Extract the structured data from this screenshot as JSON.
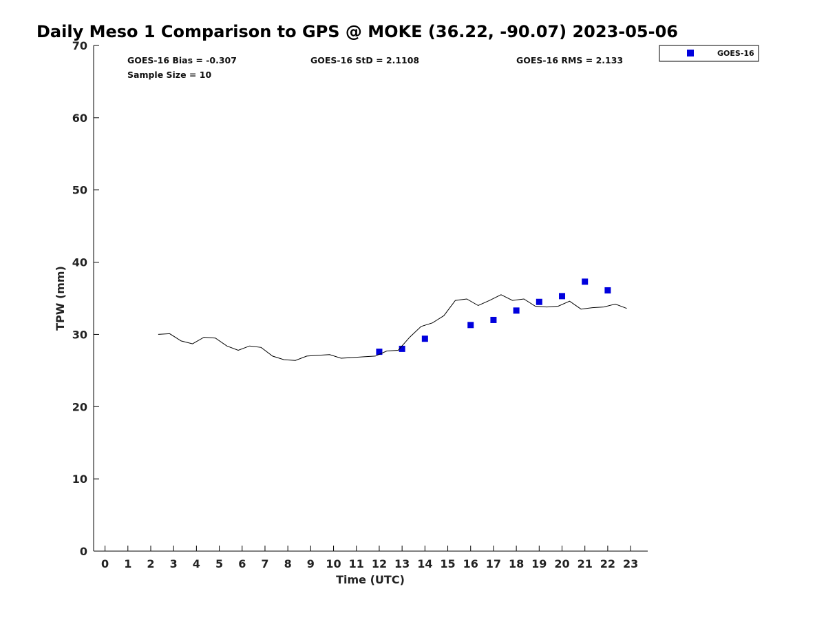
{
  "chart_data": {
    "type": "scatter",
    "title": "Daily Meso 1 Comparison to GPS @ MOKE (36.22, -90.07) 2023-05-06",
    "xlabel": "Time (UTC)",
    "ylabel": "TPW (mm)",
    "xlim": [
      -0.5,
      23.75
    ],
    "ylim": [
      0,
      70
    ],
    "x_ticks": [
      "0",
      "1",
      "2",
      "3",
      "4",
      "5",
      "6",
      "7",
      "8",
      "9",
      "10",
      "11",
      "12",
      "13",
      "14",
      "15",
      "16",
      "17",
      "18",
      "19",
      "20",
      "21",
      "22",
      "23"
    ],
    "y_ticks": [
      "0",
      "10",
      "20",
      "30",
      "40",
      "50",
      "60",
      "70"
    ],
    "grid": false,
    "legend_position": "top-right",
    "stats": {
      "bias": "GOES-16 Bias = -0.307",
      "std": "GOES-16 StD = 2.1108",
      "rms": "GOES-16 RMS = 2.133",
      "sample_size": "Sample Size = 10"
    },
    "series": [
      {
        "name": "GOES-16",
        "kind": "scatter",
        "color": "#0000dd",
        "x": [
          12,
          13,
          14,
          16,
          17,
          18,
          19,
          20,
          21,
          22
        ],
        "y": [
          27.6,
          28.0,
          29.4,
          31.3,
          32.0,
          33.3,
          34.5,
          35.3,
          37.3,
          36.1
        ]
      },
      {
        "kind": "line",
        "color": "#000000",
        "x": [
          2.33,
          2.83,
          3.33,
          3.83,
          4.33,
          4.83,
          5.33,
          5.83,
          6.33,
          6.83,
          7.33,
          7.83,
          8.33,
          8.83,
          9.33,
          9.83,
          10.33,
          10.83,
          11.33,
          11.83,
          12.33,
          12.83,
          13.33,
          13.83,
          14.33,
          14.83,
          15.33,
          15.83,
          16.33,
          16.83,
          17.33,
          17.83,
          18.33,
          18.83,
          19.33,
          19.83,
          20.33,
          20.83,
          21.33,
          21.83,
          22.33,
          22.83
        ],
        "y": [
          30.0,
          30.1,
          29.1,
          28.7,
          29.6,
          29.5,
          28.4,
          27.8,
          28.4,
          28.2,
          27.0,
          26.5,
          26.4,
          27.0,
          27.1,
          27.2,
          26.7,
          26.8,
          26.9,
          27.0,
          27.7,
          27.8,
          29.6,
          31.1,
          31.6,
          32.6,
          34.7,
          34.9,
          34.0,
          34.7,
          35.5,
          34.7,
          34.9,
          33.9,
          33.8,
          33.9,
          34.6,
          33.5,
          33.7,
          33.8,
          34.2,
          33.6
        ]
      }
    ]
  }
}
